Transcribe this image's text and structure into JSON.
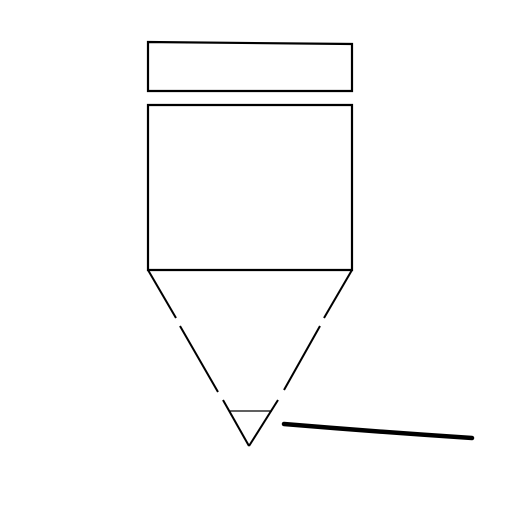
{
  "drawing": {
    "description_visible_text": "",
    "colors": {
      "background": "#ffffff",
      "ink": "#000000"
    },
    "elements": [
      "cap-rectangle",
      "body-rectangle",
      "tip-triangle-left-edge",
      "tip-triangle-right-edge",
      "tip-inner-triangle",
      "underline-stroke"
    ]
  }
}
